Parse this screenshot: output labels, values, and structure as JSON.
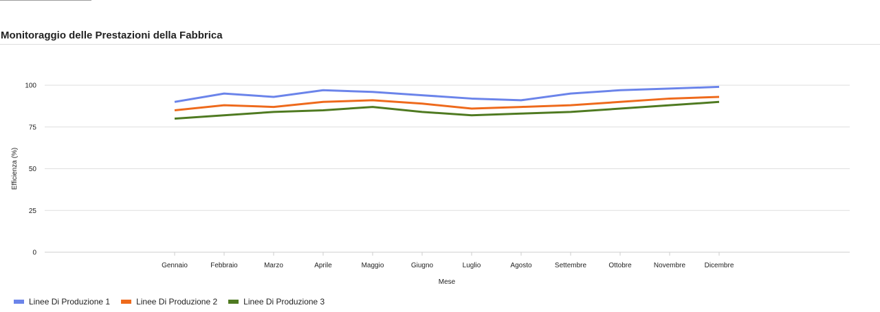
{
  "panel": {
    "title": "Monitoraggio delle Prestazioni della Fabbrica"
  },
  "chart_data": {
    "type": "line",
    "categories": [
      "Gennaio",
      "Febbraio",
      "Marzo",
      "Aprile",
      "Maggio",
      "Giugno",
      "Luglio",
      "Agosto",
      "Settembre",
      "Ottobre",
      "Novembre",
      "Dicembre"
    ],
    "series": [
      {
        "name": "Linee Di Produzione 1",
        "color": "#6b84ea",
        "values": [
          90,
          95,
          93,
          97,
          96,
          94,
          92,
          91,
          95,
          97,
          98,
          99
        ]
      },
      {
        "name": "Linee Di Produzione 2",
        "color": "#ee6a1c",
        "values": [
          85,
          88,
          87,
          90,
          91,
          89,
          86,
          87,
          88,
          90,
          92,
          93
        ]
      },
      {
        "name": "Linee Di Produzione 3",
        "color": "#4f7a21",
        "values": [
          80,
          82,
          84,
          85,
          87,
          84,
          82,
          83,
          84,
          86,
          88,
          90
        ]
      }
    ],
    "xlabel": "Mese",
    "ylabel": "Efficienza (%)",
    "ylim": [
      0,
      100
    ],
    "yticks": [
      0,
      25,
      50,
      75,
      100
    ],
    "grid": true,
    "legend_position": "bottom-left"
  }
}
